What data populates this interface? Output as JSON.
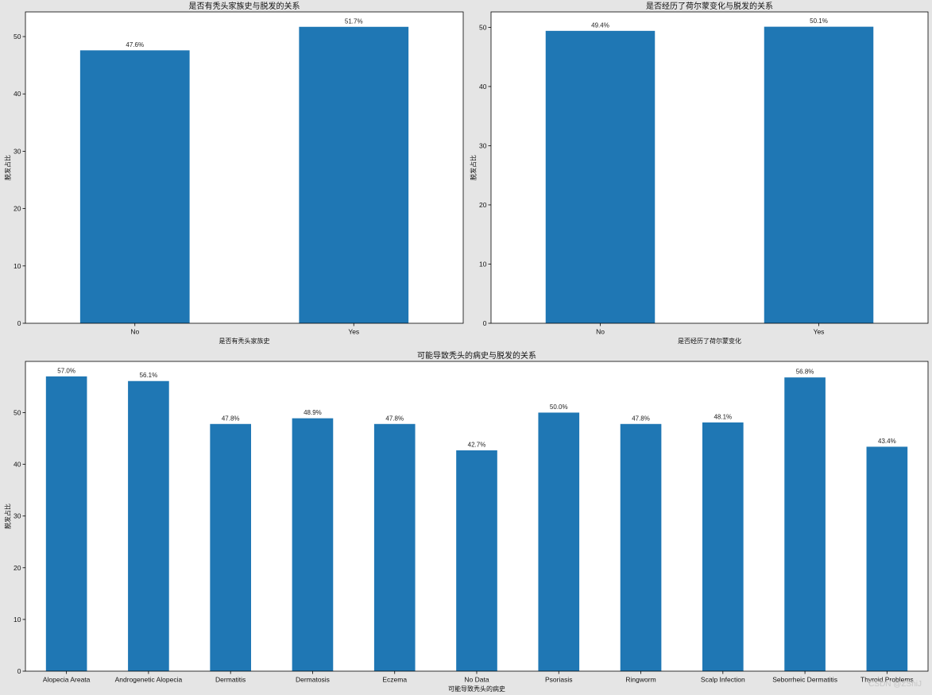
{
  "chart_data": [
    {
      "type": "bar",
      "title": "是否有秃头家族史与脱发的关系",
      "xlabel": "是否有秃头家族史",
      "ylabel": "脱发占比",
      "categories": [
        "No",
        "Yes"
      ],
      "values": [
        47.6,
        51.7
      ],
      "data_labels": [
        "47.6%",
        "51.7%"
      ],
      "yticks": [
        0,
        10,
        20,
        30,
        40,
        50
      ],
      "ylim": [
        0,
        54.3
      ],
      "bar_color": "#1f77b4",
      "grid": false
    },
    {
      "type": "bar",
      "title": "是否经历了荷尔蒙变化与脱发的关系",
      "xlabel": "是否经历了荷尔蒙变化",
      "ylabel": "脱发占比",
      "categories": [
        "No",
        "Yes"
      ],
      "values": [
        49.4,
        50.1
      ],
      "data_labels": [
        "49.4%",
        "50.1%"
      ],
      "yticks": [
        0,
        10,
        20,
        30,
        40,
        50
      ],
      "ylim": [
        0,
        52.6
      ],
      "bar_color": "#1f77b4",
      "grid": false
    },
    {
      "type": "bar",
      "title": "可能导致秃头的病史与脱发的关系",
      "xlabel": "可能导致秃头的病史",
      "ylabel": "脱发占比",
      "categories": [
        "Alopecia Areata",
        "Androgenetic Alopecia",
        "Dermatitis",
        "Dermatosis",
        "Eczema",
        "No Data",
        "Psoriasis",
        "Ringworm",
        "Scalp Infection",
        "Seborrheic Dermatitis",
        "Thyroid Problems"
      ],
      "values": [
        57.0,
        56.1,
        47.8,
        48.9,
        47.8,
        42.7,
        50.0,
        47.8,
        48.1,
        56.8,
        43.4
      ],
      "data_labels": [
        "57.0%",
        "56.1%",
        "47.8%",
        "48.9%",
        "47.8%",
        "42.7%",
        "50.0%",
        "47.8%",
        "48.1%",
        "56.8%",
        "43.4%"
      ],
      "yticks": [
        0,
        10,
        20,
        30,
        40,
        50
      ],
      "ylim": [
        0,
        59.9
      ],
      "bar_color": "#1f77b4",
      "grid": false
    }
  ],
  "watermark": "CSDN @ZShiJ"
}
